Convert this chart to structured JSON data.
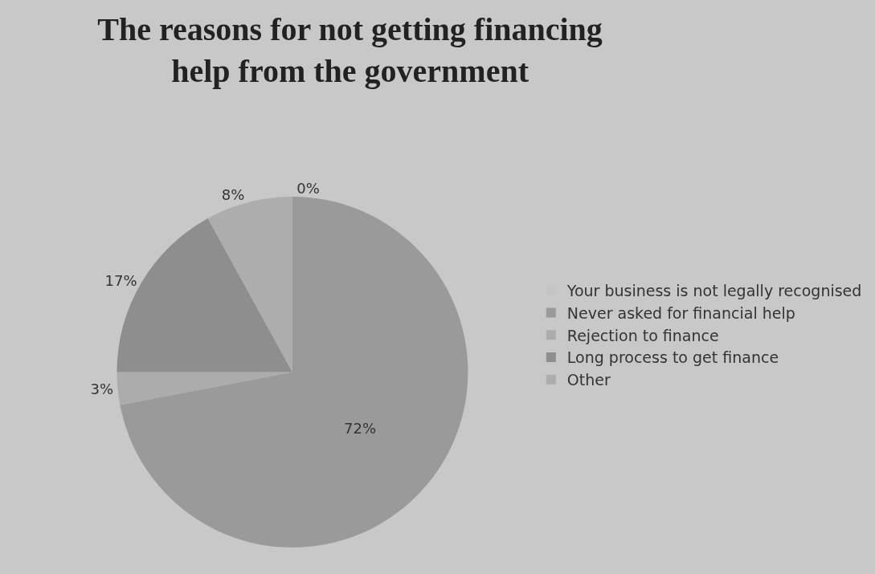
{
  "chart_data": {
    "type": "pie",
    "title": "The reasons for not getting financing\nhelp from the government",
    "categories": [
      "Your business is not legally recognised",
      "Never asked for financial help",
      "Rejection to finance",
      "Long process to get finance",
      "Other"
    ],
    "values": [
      0,
      72,
      3,
      17,
      8
    ],
    "value_labels": [
      "0%",
      "72%",
      "3%",
      "17%",
      "8%"
    ],
    "colors": [
      "#c4c4c4",
      "#9a9a9a",
      "#acacac",
      "#8e8e8e",
      "#adadad"
    ],
    "legend": "right"
  }
}
